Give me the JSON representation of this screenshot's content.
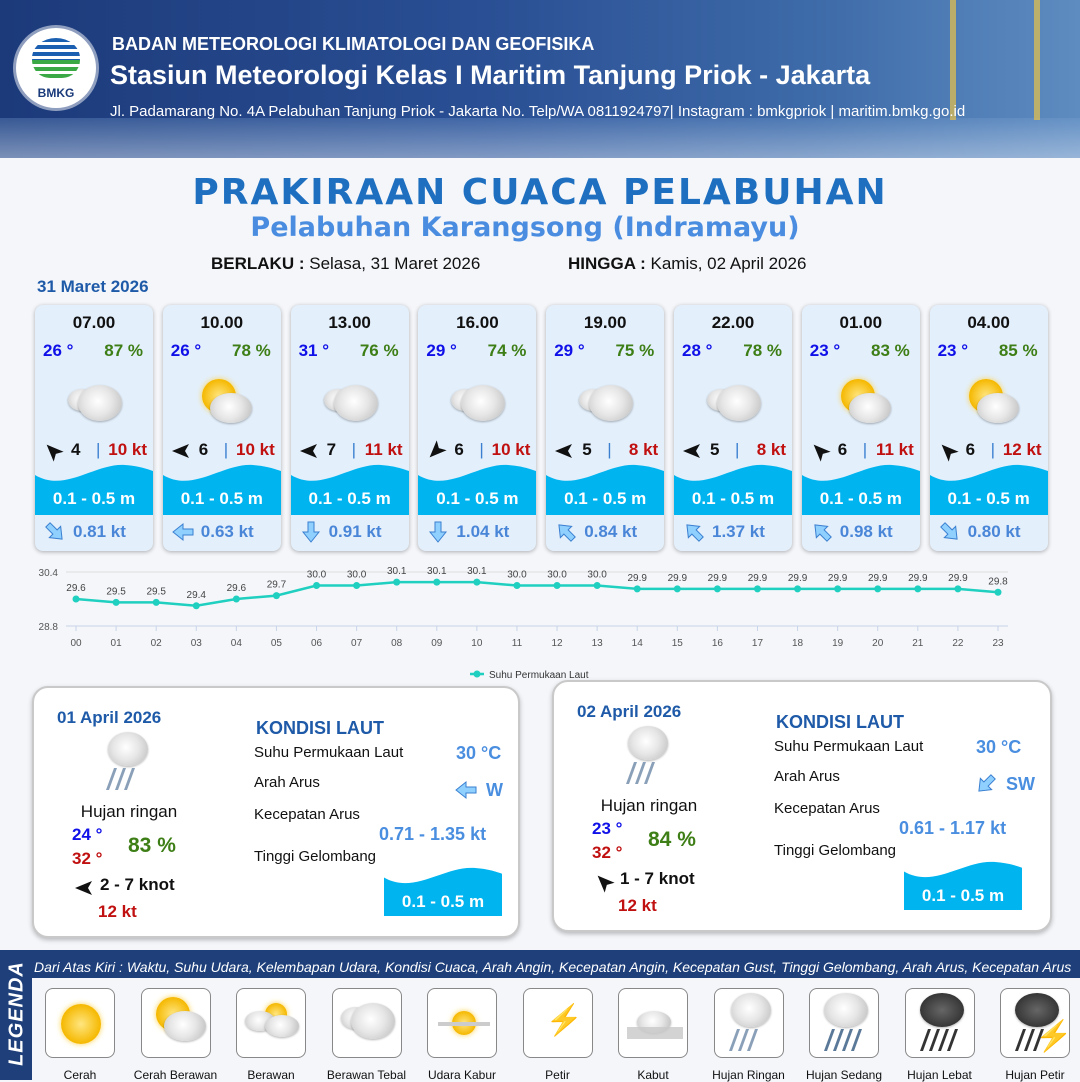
{
  "header": {
    "logo_text": "BMKG",
    "agency": "BADAN METEOROLOGI KLIMATOLOGI DAN GEOFISIKA",
    "station": "Stasiun Meteorologi Kelas I Maritim Tanjung Priok - Jakarta",
    "address": "Jl. Padamarang No. 4A Pelabuhan Tanjung Priok - Jakarta No. Telp/WA 0811924797| Instagram : bmkgpriok | maritim.bmkg.go.id"
  },
  "title": "PRAKIRAAN CUACA PELABUHAN",
  "subtitle": "Pelabuhan Karangsong (Indramayu)",
  "validity": {
    "from_label": "BERLAKU :",
    "from": "Selasa, 31 Maret 2026",
    "to_label": "HINGGA :",
    "to": "Kamis, 02 April 2026"
  },
  "forecast_date": "31 Maret 2026",
  "cards": [
    {
      "time": "07.00",
      "temp": "26 °",
      "humidity": "87 %",
      "condition": "berawan-tebal",
      "wind_dir_icon": "arrow-up-left-icon",
      "wind_speed": "4",
      "gust": "10 kt",
      "wave": "0.1 - 0.5 m",
      "current_dir_icon": "arrow-down-right-icon",
      "current_speed": "0.81 kt"
    },
    {
      "time": "10.00",
      "temp": "26 °",
      "humidity": "78 %",
      "condition": "cerah-berawan",
      "wind_dir_icon": "arrow-left-icon",
      "wind_speed": "6",
      "gust": "10 kt",
      "wave": "0.1 - 0.5 m",
      "current_dir_icon": "arrow-left-icon",
      "current_speed": "0.63 kt"
    },
    {
      "time": "13.00",
      "temp": "31 °",
      "humidity": "76 %",
      "condition": "berawan-tebal",
      "wind_dir_icon": "arrow-left-icon",
      "wind_speed": "7",
      "gust": "11 kt",
      "wave": "0.1 - 0.5 m",
      "current_dir_icon": "arrow-down-icon",
      "current_speed": "0.91 kt"
    },
    {
      "time": "16.00",
      "temp": "29 °",
      "humidity": "74 %",
      "condition": "berawan-tebal",
      "wind_dir_icon": "arrow-down-left-icon",
      "wind_speed": "6",
      "gust": "10 kt",
      "wave": "0.1 - 0.5 m",
      "current_dir_icon": "arrow-down-icon",
      "current_speed": "1.04 kt"
    },
    {
      "time": "19.00",
      "temp": "29 °",
      "humidity": "75 %",
      "condition": "berawan-tebal",
      "wind_dir_icon": "arrow-left-icon",
      "wind_speed": "5",
      "gust": "8 kt",
      "wave": "0.1 - 0.5 m",
      "current_dir_icon": "arrow-up-left-icon",
      "current_speed": "0.84 kt"
    },
    {
      "time": "22.00",
      "temp": "28 °",
      "humidity": "78 %",
      "condition": "berawan-tebal",
      "wind_dir_icon": "arrow-left-icon",
      "wind_speed": "5",
      "gust": "8 kt",
      "wave": "0.1 - 0.5 m",
      "current_dir_icon": "arrow-up-left-icon",
      "current_speed": "1.37 kt"
    },
    {
      "time": "01.00",
      "temp": "23 °",
      "humidity": "83 %",
      "condition": "cerah-berawan",
      "wind_dir_icon": "arrow-up-left-icon",
      "wind_speed": "6",
      "gust": "11 kt",
      "wave": "0.1 - 0.5 m",
      "current_dir_icon": "arrow-up-left-icon",
      "current_speed": "0.98 kt"
    },
    {
      "time": "04.00",
      "temp": "23 °",
      "humidity": "85 %",
      "condition": "cerah-berawan",
      "wind_dir_icon": "arrow-up-left-icon",
      "wind_speed": "6",
      "gust": "12 kt",
      "wave": "0.1 - 0.5 m",
      "current_dir_icon": "arrow-down-right-icon",
      "current_speed": "0.80 kt"
    }
  ],
  "chart_data": {
    "type": "line",
    "categories": [
      "00",
      "01",
      "02",
      "03",
      "04",
      "05",
      "06",
      "07",
      "08",
      "09",
      "10",
      "11",
      "12",
      "13",
      "14",
      "15",
      "16",
      "17",
      "18",
      "19",
      "20",
      "21",
      "22",
      "23"
    ],
    "series": [
      {
        "name": "Suhu Permukaan Laut",
        "values": [
          29.6,
          29.5,
          29.5,
          29.4,
          29.6,
          29.7,
          30.0,
          30.0,
          30.1,
          30.1,
          30.1,
          30.0,
          30.0,
          30.0,
          29.9,
          29.9,
          29.9,
          29.9,
          29.9,
          29.9,
          29.9,
          29.9,
          29.9,
          29.8
        ]
      }
    ],
    "ylim": [
      28.8,
      30.4
    ],
    "yticks": [
      "28.8",
      "30.4"
    ],
    "legend": "bottom",
    "color": "#1fcfbf",
    "grid": true
  },
  "days": [
    {
      "date": "01 April 2026",
      "condition": "Hujan ringan",
      "tmin": "24 °",
      "tmax": "32 °",
      "humidity": "83 %",
      "wind_dir_icon": "arrow-left-icon",
      "wind": "2  - 7 knot",
      "gust": "12 kt",
      "sea_title": "KONDISI LAUT",
      "sst_label": "Suhu Permukaan Laut",
      "sst": "30 °C",
      "current_dir_label": "Arah Arus",
      "current_dir_icon": "arrow-left-icon",
      "current_dir": "W",
      "current_speed_label": "Kecepatan Arus",
      "current_speed": "0.71  - 1.35 kt",
      "wave_label": "Tinggi Gelombang",
      "wave": "0.1 - 0.5 m"
    },
    {
      "date": "02 April 2026",
      "condition": "Hujan ringan",
      "tmin": "23 °",
      "tmax": "32 °",
      "humidity": "84 %",
      "wind_dir_icon": "arrow-up-left-icon",
      "wind": "1  - 7 knot",
      "gust": "12 kt",
      "sea_title": "KONDISI LAUT",
      "sst_label": "Suhu Permukaan Laut",
      "sst": "30 °C",
      "current_dir_label": "Arah Arus",
      "current_dir_icon": "arrow-down-left-icon",
      "current_dir": "SW",
      "current_speed_label": "Kecepatan Arus",
      "current_speed": "0.61  - 1.17 kt",
      "wave_label": "Tinggi Gelombang",
      "wave": "0.1 - 0.5 m"
    }
  ],
  "legend": {
    "title": "LEGENDA",
    "description": "Dari Atas Kiri : Waktu, Suhu Udara, Kelembapan Udara, Kondisi Cuaca, Arah Angin, Kecepatan Angin, Kecepatan Gust, Tinggi Gelombang, Arah Arus, Kecepatan Arus",
    "items": [
      {
        "label": "Cerah",
        "icon": "cerah"
      },
      {
        "label": "Cerah Berawan",
        "icon": "cerah-berawan"
      },
      {
        "label": "Berawan",
        "icon": "berawan"
      },
      {
        "label": "Berawan Tebal",
        "icon": "berawan-tebal"
      },
      {
        "label": "Udara Kabur",
        "icon": "udara-kabur"
      },
      {
        "label": "Petir",
        "icon": "petir"
      },
      {
        "label": "Kabut",
        "icon": "kabut"
      },
      {
        "label": "Hujan Ringan",
        "icon": "hujan-ringan"
      },
      {
        "label": "Hujan Sedang",
        "icon": "hujan-sedang"
      },
      {
        "label": "Hujan Lebat",
        "icon": "hujan-lebat"
      },
      {
        "label": "Hujan Petir",
        "icon": "hujan-petir"
      }
    ]
  },
  "colors": {
    "wave": "#00b4f0",
    "temp": "#1010e8",
    "humidity": "#3e7e16",
    "gust": "#c01010",
    "current": "#4a86d8",
    "title": "#1e6fc0"
  }
}
